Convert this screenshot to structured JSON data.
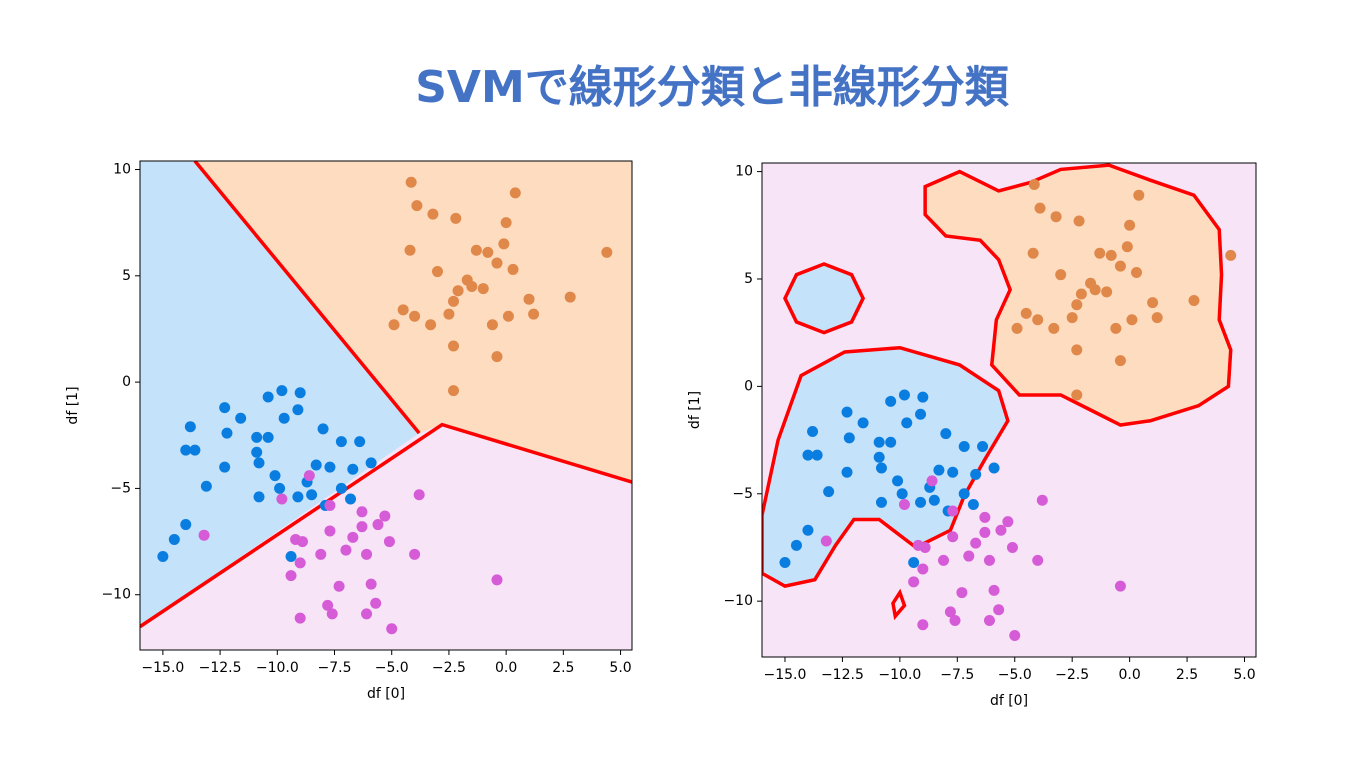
{
  "title": "SVMで線形分類と非線形分類",
  "chart_data": [
    {
      "type": "scatter",
      "xlabel": "df [0]",
      "ylabel": "df [1]",
      "xlim": [
        -16,
        5.5
      ],
      "ylim": [
        -12.6,
        10.4
      ],
      "xticks": [
        {
          "value": -15,
          "label": "−15.0"
        },
        {
          "value": -12.5,
          "label": "−12.5"
        },
        {
          "value": -10,
          "label": "−10.0"
        },
        {
          "value": -7.5,
          "label": "−7.5"
        },
        {
          "value": -5,
          "label": "−5.0"
        },
        {
          "value": -2.5,
          "label": "−2.5"
        },
        {
          "value": 0,
          "label": "0.0"
        },
        2.5,
        {
          "value": 5,
          "label": "5.0"
        }
      ],
      "yticks": [
        {
          "value": -10,
          "label": "−10"
        },
        {
          "value": -5,
          "label": "−5"
        },
        0,
        5,
        10
      ],
      "background": "#f7e4f7",
      "boundary_color": "#ff0000",
      "regions": [
        {
          "color": "#c5e2fb",
          "points": [
            [
              -16,
              10.4
            ],
            [
              -13.6,
              10.4
            ],
            [
              -3.8,
              -2.4
            ],
            [
              -16,
              -11.5
            ]
          ]
        },
        {
          "color": "#fddcc0",
          "points": [
            [
              -13.6,
              10.4
            ],
            [
              5.5,
              10.4
            ],
            [
              5.5,
              -4.7
            ],
            [
              -2.8,
              -2.0
            ],
            [
              -3.8,
              -2.4
            ]
          ]
        }
      ],
      "boundaries": [
        [
          [
            -13.6,
            10.4
          ],
          [
            -3.8,
            -2.4
          ]
        ],
        [
          [
            -16,
            -11.5
          ],
          [
            -2.8,
            -2.0
          ],
          [
            5.5,
            -4.7
          ]
        ]
      ],
      "series": [
        {
          "color": "#e0874a",
          "x": [
            -4.15,
            -3.9,
            -3.2,
            -2.2,
            0.4,
            0,
            -4.2,
            -1.3,
            -0.8,
            -0.1,
            -0.4,
            0.3,
            4.4,
            -3,
            -1.7,
            -2.1,
            -1,
            -2.3,
            1,
            -4.5,
            -4,
            -4.9,
            -3.3,
            -2.5,
            0.1,
            1.2,
            2.8,
            -0.6,
            -2.3,
            -0.4,
            -2.3,
            -1.5
          ],
          "values": [
            9.4,
            8.3,
            7.9,
            7.7,
            8.9,
            7.5,
            6.2,
            6.2,
            6.1,
            6.5,
            5.6,
            5.3,
            6.1,
            5.2,
            4.8,
            4.3,
            4.4,
            3.8,
            3.9,
            3.4,
            3.1,
            2.7,
            2.7,
            3.2,
            3.1,
            3.2,
            4,
            2.7,
            1.7,
            1.2,
            -0.4,
            4.5
          ]
        },
        {
          "color": "#0a7ee0",
          "x": [
            -15,
            -14.5,
            -14,
            -13.1,
            -14,
            -13.6,
            -13.8,
            -12.3,
            -12.2,
            -11.6,
            -12.3,
            -10.9,
            -10.9,
            -10.8,
            -10.8,
            -10.4,
            -10.4,
            -9.8,
            -9,
            -9.7,
            -9.1,
            -10.1,
            -9.9,
            -9.1,
            -8.5,
            -8.3,
            -8,
            -7.7,
            -7.2,
            -6.4,
            -6.7,
            -5.9,
            -7.2,
            -6.8,
            -9.4,
            -7.9,
            -8.7
          ],
          "values": [
            -8.2,
            -7.4,
            -6.7,
            -4.9,
            -3.2,
            -3.2,
            -2.1,
            -1.2,
            -2.4,
            -1.7,
            -4,
            -2.6,
            -3.3,
            -3.8,
            -5.4,
            -2.6,
            -0.7,
            -0.4,
            -0.5,
            -1.7,
            -1.3,
            -4.4,
            -5,
            -5.4,
            -5.3,
            -3.9,
            -2.2,
            -4,
            -2.8,
            -2.8,
            -4.1,
            -3.8,
            -5,
            -5.5,
            -8.2,
            -5.8,
            -4.7
          ]
        },
        {
          "color": "#d65bd6",
          "x": [
            -13.2,
            -9.8,
            -8.6,
            -3.8,
            -7.7,
            -7.7,
            -6.3,
            -5.6,
            -5.3,
            -7,
            -6.3,
            -6.1,
            -5.1,
            -4,
            -9.2,
            -8.9,
            -8.1,
            -9,
            -9.4,
            -7.3,
            -5.9,
            -7.8,
            -7.6,
            -9,
            -6.1,
            -5.7,
            -5,
            -0.4,
            -6.7
          ],
          "values": [
            -7.2,
            -5.5,
            -4.4,
            -5.3,
            -5.8,
            -7,
            -6.1,
            -6.7,
            -6.3,
            -7.9,
            -6.8,
            -8.1,
            -7.5,
            -8.1,
            -7.4,
            -7.5,
            -8.1,
            -8.5,
            -9.1,
            -9.6,
            -9.5,
            -10.5,
            -10.9,
            -11.1,
            -10.9,
            -10.4,
            -11.6,
            -9.3,
            -7.3
          ]
        }
      ]
    },
    {
      "type": "scatter",
      "xlabel": "df [0]",
      "ylabel": "df [1]",
      "xlim": [
        -16,
        5.5
      ],
      "ylim": [
        -12.6,
        10.4
      ],
      "xticks": [
        {
          "value": -15,
          "label": "−15.0"
        },
        {
          "value": -12.5,
          "label": "−12.5"
        },
        {
          "value": -10,
          "label": "−10.0"
        },
        {
          "value": -7.5,
          "label": "−7.5"
        },
        {
          "value": -5,
          "label": "−5.0"
        },
        {
          "value": -2.5,
          "label": "−2.5"
        },
        {
          "value": 0,
          "label": "0.0"
        },
        2.5,
        {
          "value": 5,
          "label": "5.0"
        }
      ],
      "yticks": [
        {
          "value": -10,
          "label": "−10"
        },
        {
          "value": -5,
          "label": "−5"
        },
        0,
        5,
        10
      ],
      "background": "#f7e4f7",
      "boundary_color": "#ff0000",
      "regions": [
        {
          "color": "#fddcc0",
          "points": [
            [
              -8.9,
              9.3
            ],
            [
              -7.4,
              10
            ],
            [
              -5.7,
              9.1
            ],
            [
              -4.3,
              9.5
            ],
            [
              -3,
              10.1
            ],
            [
              -0.9,
              10.3
            ],
            [
              0.9,
              9.6
            ],
            [
              2.8,
              8.9
            ],
            [
              3.9,
              7.3
            ],
            [
              4,
              5.2
            ],
            [
              3.9,
              3.1
            ],
            [
              4.4,
              1.7
            ],
            [
              4.3,
              0
            ],
            [
              3,
              -0.9
            ],
            [
              0.9,
              -1.6
            ],
            [
              -0.4,
              -1.8
            ],
            [
              -1.7,
              -1.1
            ],
            [
              -3,
              -0.4
            ],
            [
              -4.8,
              -0.4
            ],
            [
              -6,
              1
            ],
            [
              -5.8,
              3.1
            ],
            [
              -5.2,
              4.5
            ],
            [
              -5.7,
              5.9
            ],
            [
              -6.5,
              6.8
            ],
            [
              -8,
              7
            ],
            [
              -8.9,
              8
            ]
          ]
        },
        {
          "color": "#c5e2fb",
          "points": [
            [
              -13.3,
              5.7
            ],
            [
              -12.1,
              5.2
            ],
            [
              -11.6,
              4.1
            ],
            [
              -12.1,
              3
            ],
            [
              -13.3,
              2.5
            ],
            [
              -14.5,
              3
            ],
            [
              -15,
              4.1
            ],
            [
              -14.5,
              5.2
            ]
          ]
        },
        {
          "color": "#c5e2fb",
          "points": [
            [
              -16,
              -6
            ],
            [
              -15.3,
              -2.5
            ],
            [
              -14.3,
              0.5
            ],
            [
              -12.4,
              1.6
            ],
            [
              -10,
              1.8
            ],
            [
              -7.4,
              1
            ],
            [
              -5.7,
              -0.2
            ],
            [
              -5.3,
              -1.6
            ],
            [
              -6.3,
              -3.4
            ],
            [
              -7.2,
              -5.1
            ],
            [
              -7.8,
              -6.7
            ],
            [
              -9.3,
              -7.5
            ],
            [
              -10.9,
              -6.2
            ],
            [
              -12,
              -6.2
            ],
            [
              -12.8,
              -7.4
            ],
            [
              -13.7,
              -9
            ],
            [
              -15,
              -9.3
            ],
            [
              -16,
              -8.7
            ]
          ]
        },
        {
          "color": "#f7e4f7",
          "points": [
            [
              -10.3,
              -10.1
            ],
            [
              -10,
              -9.6
            ],
            [
              -9.8,
              -10.2
            ],
            [
              -10.2,
              -10.7
            ]
          ]
        }
      ],
      "series": [
        {
          "color": "#e0874a",
          "x": [
            -4.15,
            -3.9,
            -3.2,
            -2.2,
            0.4,
            0,
            -4.2,
            -1.3,
            -0.8,
            -0.1,
            -0.4,
            0.3,
            4.4,
            -3,
            -1.7,
            -2.1,
            -1,
            -2.3,
            1,
            -4.5,
            -4,
            -4.9,
            -3.3,
            -2.5,
            0.1,
            1.2,
            2.8,
            -0.6,
            -2.3,
            -0.4,
            -2.3,
            -1.5
          ],
          "values": [
            9.4,
            8.3,
            7.9,
            7.7,
            8.9,
            7.5,
            6.2,
            6.2,
            6.1,
            6.5,
            5.6,
            5.3,
            6.1,
            5.2,
            4.8,
            4.3,
            4.4,
            3.8,
            3.9,
            3.4,
            3.1,
            2.7,
            2.7,
            3.2,
            3.1,
            3.2,
            4,
            2.7,
            1.7,
            1.2,
            -0.4,
            4.5
          ]
        },
        {
          "color": "#0a7ee0",
          "x": [
            -15,
            -14.5,
            -14,
            -13.1,
            -14,
            -13.6,
            -13.8,
            -12.3,
            -12.2,
            -11.6,
            -12.3,
            -10.9,
            -10.9,
            -10.8,
            -10.8,
            -10.4,
            -10.4,
            -9.8,
            -9,
            -9.7,
            -9.1,
            -10.1,
            -9.9,
            -9.1,
            -8.5,
            -8.3,
            -8,
            -7.7,
            -7.2,
            -6.4,
            -6.7,
            -5.9,
            -7.2,
            -6.8,
            -9.4,
            -7.9,
            -8.7
          ],
          "values": [
            -8.2,
            -7.4,
            -6.7,
            -4.9,
            -3.2,
            -3.2,
            -2.1,
            -1.2,
            -2.4,
            -1.7,
            -4,
            -2.6,
            -3.3,
            -3.8,
            -5.4,
            -2.6,
            -0.7,
            -0.4,
            -0.5,
            -1.7,
            -1.3,
            -4.4,
            -5,
            -5.4,
            -5.3,
            -3.9,
            -2.2,
            -4,
            -2.8,
            -2.8,
            -4.1,
            -3.8,
            -5,
            -5.5,
            -8.2,
            -5.8,
            -4.7
          ]
        },
        {
          "color": "#d65bd6",
          "x": [
            -13.2,
            -9.8,
            -8.6,
            -3.8,
            -7.7,
            -7.7,
            -6.3,
            -5.6,
            -5.3,
            -7,
            -6.3,
            -6.1,
            -5.1,
            -4,
            -9.2,
            -8.9,
            -8.1,
            -9,
            -9.4,
            -7.3,
            -5.9,
            -7.8,
            -7.6,
            -9,
            -6.1,
            -5.7,
            -5,
            -0.4,
            -6.7
          ],
          "values": [
            -7.2,
            -5.5,
            -4.4,
            -5.3,
            -5.8,
            -7,
            -6.1,
            -6.7,
            -6.3,
            -7.9,
            -6.8,
            -8.1,
            -7.5,
            -8.1,
            -7.4,
            -7.5,
            -8.1,
            -8.5,
            -9.1,
            -9.6,
            -9.5,
            -10.5,
            -10.9,
            -11.1,
            -10.9,
            -10.4,
            -11.6,
            -9.3,
            -7.3
          ]
        }
      ]
    }
  ]
}
